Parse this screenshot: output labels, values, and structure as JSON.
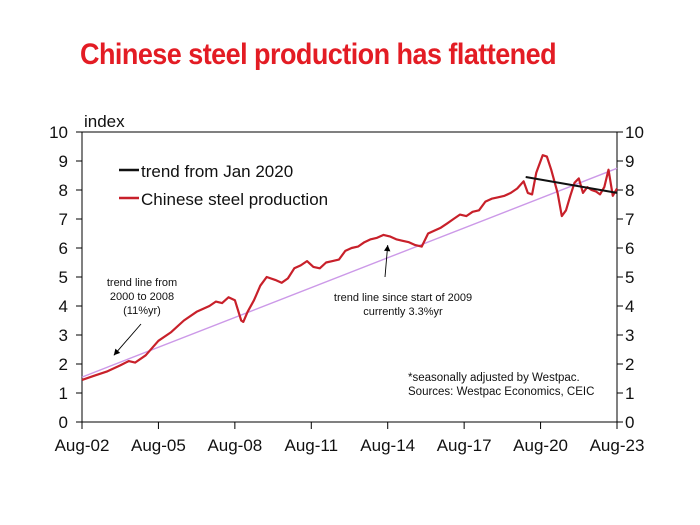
{
  "title": "Chinese steel production has flattened",
  "chart_data": {
    "type": "line",
    "title": "Chinese steel production has flattened",
    "ylabel": "index",
    "xlabel": "",
    "ylim": [
      0,
      10
    ],
    "yticks": [
      0,
      1,
      2,
      3,
      4,
      5,
      6,
      7,
      8,
      9,
      10
    ],
    "xlim": [
      "2002-08",
      "2023-08"
    ],
    "x_tick_labels": [
      "Aug-02",
      "Aug-05",
      "Aug-08",
      "Aug-11",
      "Aug-14",
      "Aug-17",
      "Aug-20",
      "Aug-23"
    ],
    "grid": false,
    "legend": {
      "position": "top-left"
    },
    "colors": {
      "production": "#c8202a",
      "trend_2020": "#111111",
      "trend_long": "#cc99e8",
      "title": "#e31c24"
    },
    "series": [
      {
        "name": "Chinese steel production",
        "x": [
          "2002-08",
          "2003-02",
          "2003-08",
          "2004-02",
          "2004-06",
          "2004-09",
          "2005-02",
          "2005-08",
          "2006-02",
          "2006-08",
          "2007-02",
          "2007-08",
          "2007-11",
          "2008-02",
          "2008-05",
          "2008-08",
          "2008-11",
          "2008-12",
          "2009-02",
          "2009-05",
          "2009-08",
          "2009-11",
          "2010-03",
          "2010-06",
          "2010-09",
          "2010-12",
          "2011-03",
          "2011-06",
          "2011-09",
          "2011-12",
          "2012-03",
          "2012-06",
          "2012-09",
          "2012-12",
          "2013-03",
          "2013-06",
          "2013-09",
          "2013-12",
          "2014-03",
          "2014-06",
          "2014-09",
          "2014-12",
          "2015-03",
          "2015-06",
          "2015-09",
          "2015-12",
          "2016-03",
          "2016-06",
          "2016-09",
          "2016-12",
          "2017-03",
          "2017-06",
          "2017-09",
          "2017-12",
          "2018-03",
          "2018-06",
          "2018-09",
          "2018-12",
          "2019-03",
          "2019-06",
          "2019-09",
          "2019-12",
          "2020-02",
          "2020-04",
          "2020-06",
          "2020-09",
          "2020-11",
          "2021-01",
          "2021-04",
          "2021-06",
          "2021-08",
          "2021-10",
          "2021-12",
          "2022-02",
          "2022-04",
          "2022-06",
          "2022-08",
          "2022-10",
          "2022-12",
          "2023-02",
          "2023-04",
          "2023-06",
          "2023-08"
        ],
        "y": [
          1.45,
          1.6,
          1.75,
          1.95,
          2.1,
          2.05,
          2.3,
          2.8,
          3.1,
          3.5,
          3.8,
          4.0,
          4.15,
          4.1,
          4.3,
          4.2,
          3.5,
          3.45,
          3.8,
          4.2,
          4.7,
          5.0,
          4.9,
          4.8,
          4.95,
          5.3,
          5.4,
          5.55,
          5.35,
          5.3,
          5.5,
          5.55,
          5.6,
          5.9,
          6.0,
          6.05,
          6.2,
          6.3,
          6.35,
          6.45,
          6.4,
          6.3,
          6.25,
          6.2,
          6.1,
          6.05,
          6.5,
          6.6,
          6.7,
          6.85,
          7.0,
          7.15,
          7.1,
          7.25,
          7.3,
          7.6,
          7.7,
          7.75,
          7.8,
          7.9,
          8.05,
          8.3,
          7.9,
          7.85,
          8.6,
          9.2,
          9.15,
          8.7,
          7.9,
          7.1,
          7.3,
          7.8,
          8.25,
          8.4,
          7.9,
          8.1,
          8.0,
          7.95,
          7.85,
          8.1,
          8.7,
          7.8,
          8.05
        ],
        "color": "#c8202a"
      },
      {
        "name": "trend from Jan 2020",
        "x": [
          "2020-01",
          "2023-08"
        ],
        "y": [
          8.45,
          7.9
        ],
        "color": "#111111"
      },
      {
        "x": [
          "2002-08",
          "2023-08"
        ],
        "y": [
          1.55,
          8.75
        ],
        "color": "#cc99e8"
      }
    ],
    "annotations": [
      {
        "lines": [
          "trend line from",
          "2000 to 2008",
          "(11%yr)"
        ],
        "arrow_to": {
          "x": "2003-11",
          "y": 2.3
        }
      },
      {
        "lines": [
          "trend line since start of 2009",
          "currently 3.3%yr"
        ],
        "arrow_to": {
          "x": "2014-08",
          "y": 6.1
        }
      },
      {
        "lines": [
          "*seasonally adjusted by Westpac.",
          "Sources: Westpac Economics, CEIC"
        ]
      }
    ]
  }
}
